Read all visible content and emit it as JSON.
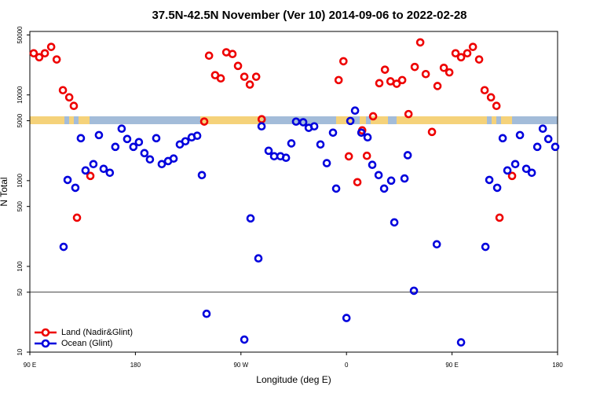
{
  "chart_data": {
    "type": "scatter",
    "title": "37.5N-42.5N November (Ver 10)   2014-09-06 to 2022-02-28",
    "x_label": "Longitude (deg E)",
    "y_label": "N Total",
    "log_y": true,
    "xlim": [
      90,
      540
    ],
    "ylim": [
      10,
      55000
    ],
    "xticks": [
      {
        "value": 90,
        "label": "90 E"
      },
      180,
      {
        "value": 270,
        "label": "90 W"
      },
      {
        "value": 360,
        "label": "0"
      },
      {
        "value": 450,
        "label": "90 E"
      },
      {
        "value": 540,
        "label": "180"
      }
    ],
    "yticks": [
      10,
      50,
      100,
      500,
      1000,
      5000,
      10000,
      50000
    ],
    "hline": 50,
    "legend": "lower left",
    "series": [
      {
        "name": "Land (Nadir&Glint)",
        "color": "#ee0000",
        "x": [
          93.3,
          98,
          102.8,
          108.2,
          112.9,
          118.2,
          123.6,
          127.5,
          130.2,
          141.6,
          238.7,
          242.8,
          248,
          252.8,
          257.5,
          262.8,
          267.5,
          272.9,
          277.6,
          283,
          287.7,
          353.3,
          357.4,
          362,
          369.3,
          373.4,
          377.4,
          382.7,
          388,
          392.8,
          397.5,
          402.8,
          407.5,
          412.9,
          418.2,
          422.9,
          427.6,
          432.9,
          437.6,
          443,
          447.7,
          453,
          457.7,
          463,
          467.8,
          473.1,
          477.8,
          483.2,
          487.9,
          490.5,
          501.2
        ],
        "values": [
          30600,
          27500,
          30600,
          36300,
          25900,
          11350,
          9370,
          7450,
          370,
          1135,
          4890,
          28700,
          17000,
          15600,
          31400,
          30000,
          21800,
          16300,
          13200,
          16300,
          5200,
          14900,
          24700,
          1920,
          960,
          3860,
          1950,
          5630,
          13700,
          19700,
          14400,
          13500,
          14900,
          5980,
          21200,
          41000,
          17500,
          3700,
          12700,
          20700,
          18300,
          30600,
          27500,
          30600,
          36300,
          25900,
          11350,
          9370,
          7450,
          370,
          1135
        ]
      },
      {
        "name": "Ocean (Glint)",
        "color": "#0000dd",
        "x": [
          118.8,
          122.2,
          128.8,
          133.5,
          137.5,
          144.2,
          148.9,
          152.9,
          158.2,
          162.9,
          168.3,
          173,
          178.3,
          183,
          187.7,
          192.4,
          197.8,
          202.5,
          207.9,
          212.6,
          217.9,
          222.6,
          228,
          232.7,
          236.7,
          240.7,
          272.9,
          278.2,
          284.9,
          287.6,
          293.6,
          298.3,
          303.7,
          308.4,
          313,
          317,
          323.1,
          327.8,
          332.5,
          337.8,
          343.2,
          348.5,
          351.2,
          360,
          363.3,
          367.3,
          372.7,
          378,
          382,
          387.4,
          392.1,
          398.1,
          400.8,
          409.5,
          412.2,
          417.5,
          437,
          457.7,
          478.5,
          481.8,
          488.5,
          493.2,
          497.2,
          503.9,
          507.9,
          513.3,
          518,
          522.7,
          527.4,
          532.1,
          538
        ],
        "values": [
          169,
          1020,
          826,
          3127,
          1316,
          1559,
          3400,
          1374,
          1236,
          2478,
          4040,
          3060,
          2478,
          2816,
          2094,
          1770,
          3127,
          1559,
          1690,
          1810,
          2644,
          2878,
          3200,
          3340,
          1160,
          28,
          14,
          363,
          124,
          4300,
          2230,
          1925,
          1925,
          1850,
          2720,
          4880,
          4800,
          4130,
          4300,
          2644,
          1600,
          3630,
          808,
          25,
          4970,
          6560,
          3630,
          3200,
          1530,
          1160,
          808,
          1000,
          326,
          1060,
          1980,
          52,
          181,
          13,
          169,
          1020,
          826,
          3127,
          1316,
          1559,
          3400,
          1374,
          1236,
          2478,
          4040,
          3060,
          2478
        ]
      }
    ]
  }
}
